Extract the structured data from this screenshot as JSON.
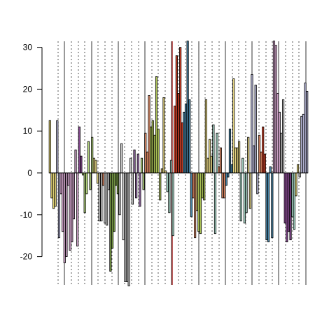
{
  "chart_data": {
    "type": "bar",
    "title": "",
    "xlabel": "",
    "ylabel": "",
    "ylim": [
      -27,
      32
    ],
    "yticks": [
      -20,
      -10,
      0,
      10,
      20,
      30
    ],
    "ytick_labels": [
      "-20",
      "-10",
      "0",
      "10",
      "20",
      "30"
    ],
    "grid": {
      "solid_and_dotted_vertical_separators": true
    },
    "highlight_line_color": "#a52a2a",
    "baseline_color": "#000000",
    "bar_border_color": "#000000",
    "bars": [
      {
        "v": 12.5,
        "c": "#e5d77a"
      },
      {
        "v": -6.0,
        "c": "#e5d77a"
      },
      {
        "v": -8.5,
        "c": "#e5d77a"
      },
      {
        "v": -8.0,
        "c": "#e5d77a"
      },
      {
        "v": 12.5,
        "c": "#b8b8d8"
      },
      {
        "v": -15.5,
        "c": "#b8b8d8"
      },
      {
        "v": -5.0,
        "c": "#d7a8d0"
      },
      {
        "v": -14.0,
        "c": "#d7a8d0"
      },
      {
        "v": -21.5,
        "c": "#d7a8d0"
      },
      {
        "v": -20.0,
        "c": "#d7a8d0"
      },
      {
        "v": -3.0,
        "c": "#d7a8d0"
      },
      {
        "v": -18.5,
        "c": "#d7a8d0"
      },
      {
        "v": -16.5,
        "c": "#d7a8d0"
      },
      {
        "v": -11.0,
        "c": "#d7a8d0"
      },
      {
        "v": 5.5,
        "c": "#d7a8d0"
      },
      {
        "v": -17.5,
        "c": "#d7a8d0"
      },
      {
        "v": 11.0,
        "c": "#8a4b94"
      },
      {
        "v": 4.0,
        "c": "#8a4b94"
      },
      {
        "v": -0.5,
        "c": "#b4d77e"
      },
      {
        "v": -9.5,
        "c": "#b4d77e"
      },
      {
        "v": -5.0,
        "c": "#b4d77e"
      },
      {
        "v": 7.5,
        "c": "#b4d77e"
      },
      {
        "v": -4.0,
        "c": "#b4d77e"
      },
      {
        "v": 8.5,
        "c": "#b4d77e"
      },
      {
        "v": 3.5,
        "c": "#e8d884"
      },
      {
        "v": 3.0,
        "c": "#e8d884"
      },
      {
        "v": -2.5,
        "c": "#e8d884"
      },
      {
        "v": -11.5,
        "c": "#c8c8c8"
      },
      {
        "v": -11.5,
        "c": "#c8c8c8"
      },
      {
        "v": -3.0,
        "c": "#e58f6a"
      },
      {
        "v": -12.0,
        "c": "#c8c8c8"
      },
      {
        "v": -12.5,
        "c": "#c8c8c8"
      },
      {
        "v": -4.0,
        "c": "#c8c8c8"
      },
      {
        "v": -23.5,
        "c": "#7ea14a"
      },
      {
        "v": -18.0,
        "c": "#7ea14a"
      },
      {
        "v": -14.0,
        "c": "#7ea14a"
      },
      {
        "v": -3.0,
        "c": "#7ea14a"
      },
      {
        "v": -5.0,
        "c": "#7ea14a"
      },
      {
        "v": -10.0,
        "c": "#c8c8c8"
      },
      {
        "v": 7.0,
        "c": "#c8c8c8"
      },
      {
        "v": -16.0,
        "c": "#c8c8c8"
      },
      {
        "v": -26.0,
        "c": "#c8c8c8"
      },
      {
        "v": -26.0,
        "c": "#c8c8c8"
      },
      {
        "v": -27.0,
        "c": "#c8c8c8"
      },
      {
        "v": 3.5,
        "c": "#c8c8c8"
      },
      {
        "v": -7.5,
        "c": "#c8c8c8"
      },
      {
        "v": 5.5,
        "c": "#9b6fae"
      },
      {
        "v": -6.0,
        "c": "#9b6fae"
      },
      {
        "v": 4.5,
        "c": "#9b6fae"
      },
      {
        "v": -8.0,
        "c": "#9b6fae"
      },
      {
        "v": 3.5,
        "c": "#b4d77e"
      },
      {
        "v": -4.0,
        "c": "#b4d77e"
      },
      {
        "v": 9.5,
        "c": "#e58f6a"
      },
      {
        "v": 5.0,
        "c": "#e58f6a"
      },
      {
        "v": 18.5,
        "c": "#e58f6a"
      },
      {
        "v": 11.0,
        "c": "#b0c858"
      },
      {
        "v": 12.5,
        "c": "#b0c858"
      },
      {
        "v": 9.0,
        "c": "#b0c858"
      },
      {
        "v": 23.0,
        "c": "#b0c858"
      },
      {
        "v": 10.5,
        "c": "#b0c858"
      },
      {
        "v": -6.5,
        "c": "#b0c858"
      },
      {
        "v": 1.0,
        "c": "#e8d884"
      },
      {
        "v": 18.0,
        "c": "#e8d884"
      },
      {
        "v": 0.5,
        "c": "#e8d884"
      },
      {
        "v": -4.5,
        "c": "#a8d8c8"
      },
      {
        "v": -9.5,
        "c": "#a8d8c8"
      },
      {
        "v": 3.0,
        "c": "#a8d8c8"
      },
      {
        "v": -15.0,
        "c": "#a8d8c8"
      },
      {
        "v": 16.0,
        "c": "#d9442a"
      },
      {
        "v": 28.0,
        "c": "#d9442a"
      },
      {
        "v": 19.0,
        "c": "#d9442a"
      },
      {
        "v": 30.0,
        "c": "#d9442a"
      },
      {
        "v": 12.0,
        "c": "#d9442a"
      },
      {
        "v": 14.5,
        "c": "#4a86a8"
      },
      {
        "v": 16.5,
        "c": "#4a86a8"
      },
      {
        "v": 31.5,
        "c": "#4a86a8"
      },
      {
        "v": 17.5,
        "c": "#4a86a8"
      },
      {
        "v": -10.5,
        "c": "#4a86a8"
      },
      {
        "v": -6.0,
        "c": "#e58f6a"
      },
      {
        "v": -15.5,
        "c": "#e58f6a"
      },
      {
        "v": -9.0,
        "c": "#e8d884"
      },
      {
        "v": -14.0,
        "c": "#b0c858"
      },
      {
        "v": -14.5,
        "c": "#b0c858"
      },
      {
        "v": -6.0,
        "c": "#b0c858"
      },
      {
        "v": -6.5,
        "c": "#b0c858"
      },
      {
        "v": 17.5,
        "c": "#e8d884"
      },
      {
        "v": 3.5,
        "c": "#e8d884"
      },
      {
        "v": 8.0,
        "c": "#e8d884"
      },
      {
        "v": 4.0,
        "c": "#e8d884"
      },
      {
        "v": 11.5,
        "c": "#a8d8c8"
      },
      {
        "v": -14.5,
        "c": "#a8d8c8"
      },
      {
        "v": 9.5,
        "c": "#a8d8c8"
      },
      {
        "v": 1.5,
        "c": "#e58f6a"
      },
      {
        "v": 6.0,
        "c": "#e58f6a"
      },
      {
        "v": -6.0,
        "c": "#e58f6a"
      },
      {
        "v": -6.0,
        "c": "#e58f6a"
      },
      {
        "v": -3.0,
        "c": "#4a86a8"
      },
      {
        "v": -1.0,
        "c": "#4a86a8"
      },
      {
        "v": 10.5,
        "c": "#4a86a8"
      },
      {
        "v": 2.0,
        "c": "#4a86a8"
      },
      {
        "v": 22.5,
        "c": "#e8d884"
      },
      {
        "v": 6.0,
        "c": "#e8d884"
      },
      {
        "v": 6.0,
        "c": "#e8d884"
      },
      {
        "v": 7.5,
        "c": "#e8d884"
      },
      {
        "v": -11.5,
        "c": "#a8d8c8"
      },
      {
        "v": 3.5,
        "c": "#a8d8c8"
      },
      {
        "v": -12.0,
        "c": "#a8d8c8"
      },
      {
        "v": -9.5,
        "c": "#a8d8c8"
      },
      {
        "v": 8.5,
        "c": "#e8d884"
      },
      {
        "v": -8.5,
        "c": "#e8d884"
      },
      {
        "v": 23.5,
        "c": "#b8b8d8"
      },
      {
        "v": 6.5,
        "c": "#b8b8d8"
      },
      {
        "v": 21.0,
        "c": "#b8b8d8"
      },
      {
        "v": -5.0,
        "c": "#b8b8d8"
      },
      {
        "v": 9.0,
        "c": "#e58f6a"
      },
      {
        "v": 5.0,
        "c": "#e58f6a"
      },
      {
        "v": 11.0,
        "c": "#d9442a"
      },
      {
        "v": 4.5,
        "c": "#d9442a"
      },
      {
        "v": -16.0,
        "c": "#4a86a8"
      },
      {
        "v": -16.5,
        "c": "#4a86a8"
      },
      {
        "v": 1.5,
        "c": "#4a86a8"
      },
      {
        "v": -15.5,
        "c": "#4a86a8"
      },
      {
        "v": 31.5,
        "c": "#d7a8d0"
      },
      {
        "v": 30.5,
        "c": "#d7a8d0"
      },
      {
        "v": 19.0,
        "c": "#d7a8d0"
      },
      {
        "v": 14.5,
        "c": "#d7a8d0"
      },
      {
        "v": 9.5,
        "c": "#c8c8c8"
      },
      {
        "v": 17.5,
        "c": "#c8c8c8"
      },
      {
        "v": -12.0,
        "c": "#8a4b94"
      },
      {
        "v": -16.5,
        "c": "#8a4b94"
      },
      {
        "v": -14.0,
        "c": "#8a4b94"
      },
      {
        "v": -16.0,
        "c": "#8a4b94"
      },
      {
        "v": -10.5,
        "c": "#a8d8c8"
      },
      {
        "v": -13.5,
        "c": "#a8d8c8"
      },
      {
        "v": -5.5,
        "c": "#e8d884"
      },
      {
        "v": 2.0,
        "c": "#e8d884"
      },
      {
        "v": -1.0,
        "c": "#c8c8c8"
      },
      {
        "v": 13.5,
        "c": "#b8b8d8"
      },
      {
        "v": 14.0,
        "c": "#b8b8d8"
      },
      {
        "v": 21.5,
        "c": "#b8b8d8"
      },
      {
        "v": 19.5,
        "c": "#b8b8d8"
      }
    ]
  }
}
